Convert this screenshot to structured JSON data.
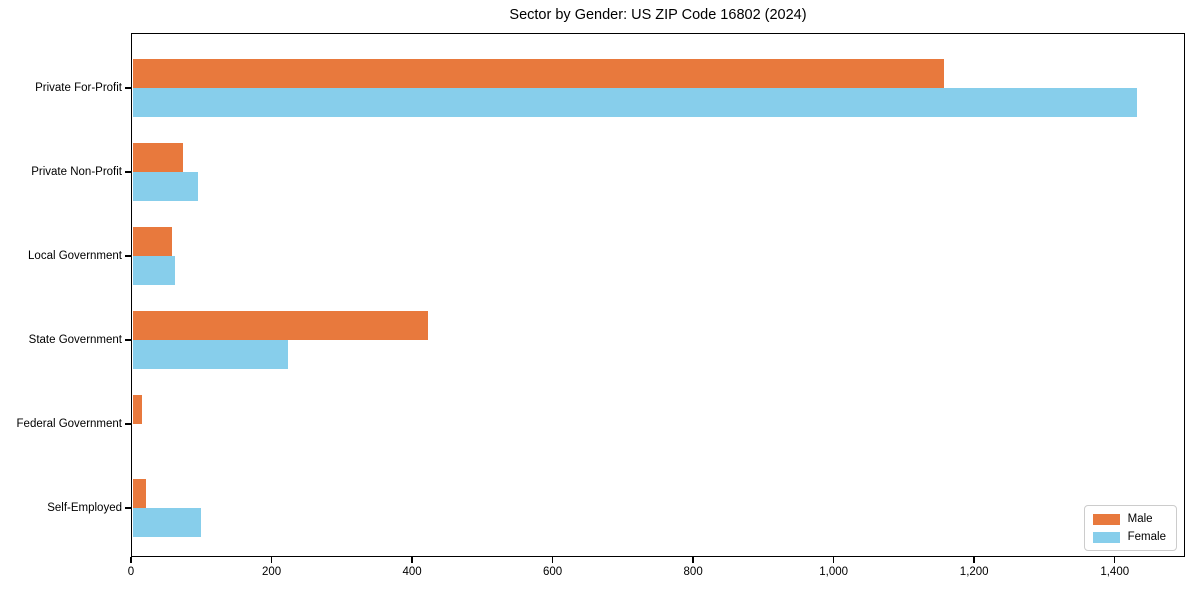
{
  "chart_data": {
    "type": "bar",
    "orientation": "horizontal",
    "title": "Sector by Gender: US ZIP Code 16802 (2024)",
    "categories": [
      "Private For-Profit",
      "Private Non-Profit",
      "Local Government",
      "State Government",
      "Federal Government",
      "Self-Employed"
    ],
    "series": [
      {
        "name": "Male",
        "color": "#e8793d",
        "values": [
          1155,
          72,
          56,
          420,
          13,
          19
        ]
      },
      {
        "name": "Female",
        "color": "#87ceeb",
        "values": [
          1430,
          93,
          61,
          221,
          0,
          98
        ]
      }
    ],
    "xlim": [
      0,
      1500
    ],
    "x_ticks": [
      0,
      200,
      400,
      600,
      800,
      1000,
      1200,
      1400
    ],
    "x_tick_labels": [
      "0",
      "200",
      "400",
      "600",
      "800",
      "1,000",
      "1,200",
      "1,400"
    ],
    "grid": false,
    "legend": {
      "position": "lower-right",
      "entries": [
        "Male",
        "Female"
      ]
    },
    "colors": {
      "spine": "#000000",
      "text": "#000000",
      "background": "#ffffff",
      "legend_border": "#cccccc"
    }
  }
}
